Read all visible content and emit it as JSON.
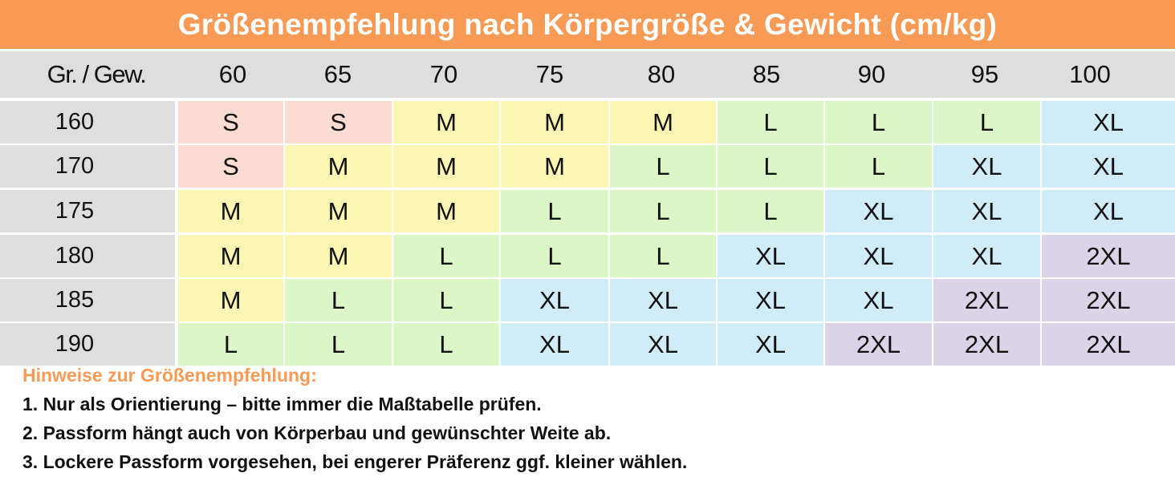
{
  "title": "Größenempfehlung nach Körpergröße & Gewicht (cm/kg)",
  "corner_label": "Gr. / Gew.",
  "weights": [
    "60",
    "65",
    "70",
    "75",
    "80",
    "85",
    "90",
    "95",
    "100"
  ],
  "rows": [
    {
      "height": "160",
      "sizes": [
        "S",
        "S",
        "M",
        "M",
        "M",
        "L",
        "L",
        "L",
        "XL"
      ]
    },
    {
      "height": "170",
      "sizes": [
        "S",
        "M",
        "M",
        "M",
        "L",
        "L",
        "L",
        "XL",
        "XL"
      ]
    },
    {
      "height": "175",
      "sizes": [
        "M",
        "M",
        "M",
        "L",
        "L",
        "L",
        "XL",
        "XL",
        "XL"
      ]
    },
    {
      "height": "180",
      "sizes": [
        "M",
        "M",
        "L",
        "L",
        "L",
        "XL",
        "XL",
        "XL",
        "2XL"
      ]
    },
    {
      "height": "185",
      "sizes": [
        "M",
        "L",
        "L",
        "XL",
        "XL",
        "XL",
        "XL",
        "2XL",
        "2XL"
      ]
    },
    {
      "height": "190",
      "sizes": [
        "L",
        "L",
        "L",
        "XL",
        "XL",
        "XL",
        "2XL",
        "2XL",
        "2XL"
      ]
    }
  ],
  "size_colors": {
    "S": "#fbdcd3",
    "M": "#fbf6b4",
    "L": "#ddf6c8",
    "XL": "#d0ecf8",
    "2XL": "#dbd3e8"
  },
  "accent_color": "#f79a55",
  "notes": {
    "heading": "Hinweise zur Größenempfehlung:",
    "items": [
      "1. Nur als Orientierung – bitte immer die Maßtabelle prüfen.",
      "2. Passform hängt auch von Körperbau und gewünschter Weite ab.",
      "3. Lockere Passform vorgesehen, bei engerer Präferenz ggf. kleiner wählen."
    ]
  }
}
